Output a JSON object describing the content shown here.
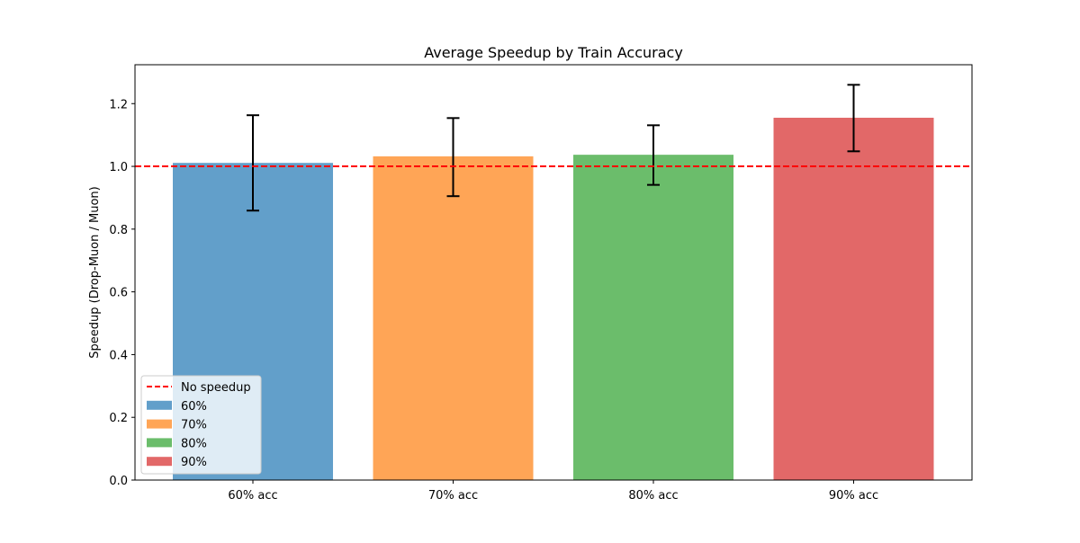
{
  "chart_data": {
    "type": "bar",
    "title": "Average Speedup by Train Accuracy",
    "xlabel": "",
    "ylabel": "Speedup (Drop-Muon / Muon)",
    "categories": [
      "60% acc",
      "70% acc",
      "80% acc",
      "90% acc"
    ],
    "values": [
      1.011,
      1.032,
      1.037,
      1.155
    ],
    "error_low": [
      0.859,
      0.905,
      0.941,
      1.048
    ],
    "error_high": [
      1.163,
      1.154,
      1.131,
      1.26
    ],
    "colors": [
      "#629fca",
      "#ffa556",
      "#6bbd6b",
      "#e26868"
    ],
    "ylim": [
      0,
      1.324
    ],
    "yticks": [
      "0.0",
      "0.2",
      "0.4",
      "0.6",
      "0.8",
      "1.0",
      "1.2"
    ],
    "grid": false,
    "reference_line": {
      "y": 1.0,
      "label": "No speedup",
      "color": "#ff0000",
      "style": "dashed"
    },
    "legend": {
      "placement": "lower-left",
      "entries": [
        "No speedup",
        "60%",
        "70%",
        "80%",
        "90%"
      ]
    }
  }
}
